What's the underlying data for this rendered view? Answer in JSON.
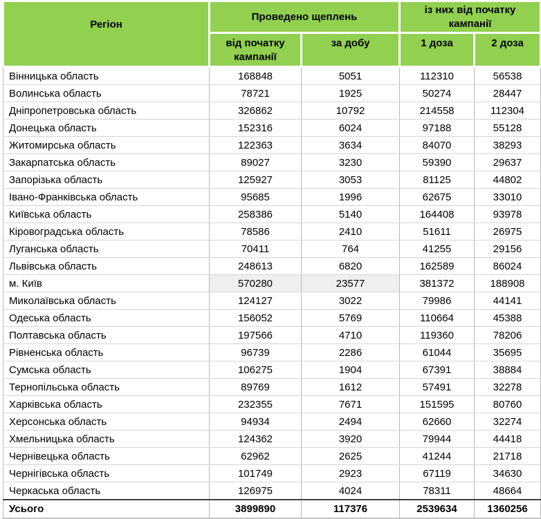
{
  "chart_data": {
    "type": "table",
    "header": {
      "region": "Регіон",
      "group_vaccinations": "Проведено щеплень",
      "group_campaign": "із них від початку кампанії",
      "sub_columns": [
        "від початку кампанії",
        "за добу",
        "1 доза",
        "2 доза"
      ]
    },
    "rows": [
      {
        "region": "Вінницька область",
        "values": [
          168848,
          5051,
          112310,
          56538
        ]
      },
      {
        "region": "Волинська область",
        "values": [
          78721,
          1925,
          50274,
          28447
        ]
      },
      {
        "region": "Дніпропетровська область",
        "values": [
          326862,
          10792,
          214558,
          112304
        ]
      },
      {
        "region": "Донецька область",
        "values": [
          152316,
          6024,
          97188,
          55128
        ]
      },
      {
        "region": "Житомирська область",
        "values": [
          122363,
          3634,
          84070,
          38293
        ]
      },
      {
        "region": "Закарпатська область",
        "values": [
          89027,
          3230,
          59390,
          29637
        ]
      },
      {
        "region": "Запорізька область",
        "values": [
          125927,
          3053,
          81125,
          44802
        ]
      },
      {
        "region": "Івано-Франківська область",
        "values": [
          95685,
          1996,
          62675,
          33010
        ]
      },
      {
        "region": "Київська область",
        "values": [
          258386,
          5140,
          164408,
          93978
        ]
      },
      {
        "region": "Кіровоградська область",
        "values": [
          78586,
          2410,
          51611,
          26975
        ]
      },
      {
        "region": "Луганська область",
        "values": [
          70411,
          764,
          41255,
          29156
        ]
      },
      {
        "region": "Львівська область",
        "values": [
          248613,
          6820,
          162589,
          86024
        ]
      },
      {
        "region": "м. Київ",
        "values": [
          570280,
          23577,
          381372,
          188908
        ],
        "highlight_cols": [
          0,
          1
        ]
      },
      {
        "region": "Миколаївська область",
        "values": [
          124127,
          3022,
          79986,
          44141
        ]
      },
      {
        "region": "Одеська область",
        "values": [
          156052,
          5769,
          110664,
          45388
        ]
      },
      {
        "region": "Полтавська область",
        "values": [
          197566,
          4710,
          119360,
          78206
        ]
      },
      {
        "region": "Рівненська область",
        "values": [
          96739,
          2286,
          61044,
          35695
        ]
      },
      {
        "region": "Сумська область",
        "values": [
          106275,
          1904,
          67391,
          38884
        ]
      },
      {
        "region": "Тернопільська область",
        "values": [
          89769,
          1612,
          57491,
          32278
        ]
      },
      {
        "region": "Харківська область",
        "values": [
          232355,
          7671,
          151595,
          80760
        ]
      },
      {
        "region": "Херсонська область",
        "values": [
          94934,
          2494,
          62660,
          32274
        ]
      },
      {
        "region": "Хмельницька область",
        "values": [
          124362,
          3920,
          79944,
          44418
        ]
      },
      {
        "region": "Чернівецька область",
        "values": [
          62962,
          2625,
          41244,
          21718
        ]
      },
      {
        "region": "Чернігівська область",
        "values": [
          101749,
          2923,
          67119,
          34630
        ]
      },
      {
        "region": "Черкаська область",
        "values": [
          126975,
          4024,
          78311,
          48664
        ]
      }
    ],
    "footer": {
      "label": "Усього",
      "values": [
        3899890,
        117376,
        2539634,
        1360256
      ]
    }
  },
  "colors": {
    "header_bg": "#92D050",
    "highlight_bg": "#EFEFEF",
    "grid_vertical": "#B7B7B7",
    "grid_horizontal": "#D6D6D6",
    "footer_rule": "#3F3F3F",
    "text": "#000000"
  }
}
